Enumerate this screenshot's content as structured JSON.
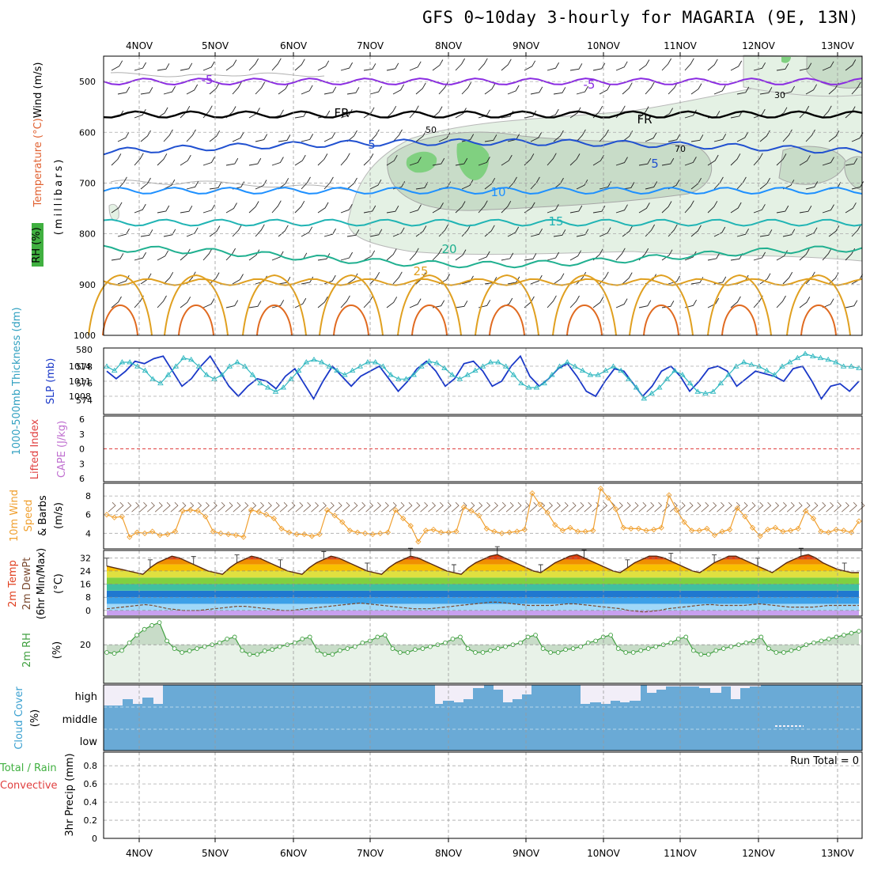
{
  "title": "GFS 0~10day 3-hourly for MAGARIA (9E, 13N)",
  "dates": [
    "4NOV",
    "5NOV",
    "6NOV",
    "7NOV",
    "8NOV",
    "9NOV",
    "10NOV",
    "11NOV",
    "12NOV",
    "13NOV"
  ],
  "chart_data": [
    {
      "type": "contour",
      "panel": "upper-air",
      "ylabel_parts": [
        "Wind (m/s)",
        "Temperature (°C)",
        "RH (%)",
        "(millibars)"
      ],
      "y_ticks": [
        500,
        600,
        700,
        800,
        900,
        1000
      ],
      "temperature_isotherms": [
        {
          "label": "-5",
          "pressure_mb": 500
        },
        {
          "label": "FR",
          "pressure_mb": 565
        },
        {
          "label": "5",
          "pressure_mb": 638
        },
        {
          "label": "10",
          "pressure_mb": 715
        },
        {
          "label": "15",
          "pressure_mb": 778
        },
        {
          "label": "20",
          "pressure_mb": 845
        },
        {
          "label": "25",
          "pressure_mb": 895
        }
      ],
      "rh_labels": [
        "30",
        "50",
        "70"
      ]
    },
    {
      "type": "line",
      "panel": "thickness-slp",
      "ylabel_left": "1000-500mb Thickness (dm)",
      "ylabel_right": "SLP (mb)",
      "y_ticks_left": [
        574,
        576,
        578,
        580
      ],
      "y_ticks_right": [
        1008,
        1011,
        1014
      ],
      "series": [
        {
          "name": "SLP (mb)",
          "values": [
            1013,
            1011.5,
            1013,
            1015,
            1014.5,
            1015.5,
            1016,
            1013,
            1010,
            1011.5,
            1014,
            1016,
            1013,
            1010,
            1008,
            1010,
            1011.5,
            1011,
            1009.5,
            1012,
            1013.5,
            1010.5,
            1007.5,
            1011,
            1014,
            1012,
            1010,
            1012,
            1013,
            1014,
            1011.5,
            1009,
            1011,
            1013.5,
            1015,
            1013,
            1010,
            1011.5,
            1014.5,
            1015,
            1013,
            1010,
            1011,
            1014,
            1016,
            1012,
            1010,
            1011.5,
            1013.5,
            1014.5,
            1012,
            1009,
            1008,
            1011,
            1013.5,
            1013,
            1010.5,
            1008,
            1010,
            1013,
            1014,
            1012,
            1009,
            1011,
            1013.5,
            1014,
            1013,
            1010,
            1011.5,
            1013,
            1012.5,
            1012,
            1011,
            1013.5,
            1014,
            1011,
            1007.5,
            1010,
            1010.5,
            1009,
            1011
          ]
        },
        {
          "name": "1000-500mb Thickness (dm)",
          "values": [
            578,
            577.5,
            578.5,
            578.5,
            578,
            577.5,
            576.5,
            576,
            577,
            578,
            579,
            578.8,
            578,
            577,
            576.5,
            577,
            578,
            578.5,
            578,
            577,
            576,
            575.5,
            575,
            575.5,
            576.5,
            577.5,
            578.5,
            578.8,
            578.5,
            578,
            577.5,
            577,
            577.5,
            578,
            578.5,
            578.5,
            578,
            577,
            576.5,
            576.5,
            577,
            578,
            578.6,
            578.4,
            577.8,
            577,
            576.5,
            577,
            577.5,
            578,
            578.5,
            578.5,
            578,
            577,
            576,
            575.5,
            575.5,
            576,
            577,
            578,
            578.5,
            578,
            577.5,
            577,
            577,
            577.5,
            578,
            577.5,
            576.5,
            575.5,
            574.2,
            574.8,
            575.5,
            576.5,
            577.5,
            577,
            576,
            575,
            574.8,
            575,
            576,
            577,
            578,
            578.5,
            578.2,
            578,
            577.5,
            577,
            578,
            578.5,
            579,
            579.5,
            579.2,
            579,
            578.8,
            578.5,
            578,
            578,
            577.8
          ]
        }
      ]
    },
    {
      "type": "line",
      "panel": "stability",
      "ylabel_parts": [
        "Lifted Index",
        "CAPE (J/kg)"
      ],
      "y_ticks": [
        "6",
        "3",
        "0",
        "3",
        "6"
      ],
      "series": [
        {
          "name": "Lifted Index",
          "values": [
            0
          ]
        }
      ]
    },
    {
      "type": "line",
      "panel": "10m-wind",
      "ylabel": "10m Wind Speed & Barbs",
      "yunit": "(m/s)",
      "y_ticks": [
        4,
        6,
        8
      ],
      "series": [
        {
          "name": "10m Wind Speed",
          "values": [
            6,
            5.7,
            5.8,
            3.6,
            4.1,
            4,
            4.2,
            3.8,
            3.9,
            4.2,
            6.4,
            6.5,
            6.4,
            5.8,
            4.2,
            4,
            3.9,
            3.8,
            3.6,
            6.5,
            6.3,
            6,
            5.6,
            4.5,
            4.1,
            3.9,
            3.9,
            3.7,
            3.9,
            6.5,
            5.9,
            5.2,
            4.3,
            4.1,
            4,
            3.9,
            4,
            4.1,
            6.5,
            5.6,
            4.8,
            3.1,
            4.3,
            4.4,
            4.1,
            4.1,
            4.2,
            6.8,
            6.4,
            5.9,
            4.5,
            4.2,
            4,
            4.1,
            4.2,
            4.4,
            8.3,
            7.1,
            6.2,
            4.9,
            4.3,
            4.6,
            4.2,
            4.2,
            4.3,
            8.8,
            7.8,
            6.6,
            4.6,
            4.5,
            4.5,
            4.3,
            4.4,
            4.6,
            8.1,
            6.5,
            5.2,
            4.3,
            4.3,
            4.5,
            3.8,
            4.2,
            4.4,
            6.7,
            5.8,
            4.6,
            3.7,
            4.4,
            4.6,
            4.2,
            4.3,
            4.5,
            6.4,
            5.6,
            4.2,
            4.1,
            4.4,
            4.3,
            4.1,
            5.3
          ]
        }
      ]
    },
    {
      "type": "area",
      "panel": "2m-temperature",
      "ylabel_parts": [
        "2m Temp",
        "2m DewPt",
        "(6hr Min/Max)"
      ],
      "yunit": "(°C)",
      "y_ticks": [
        0,
        8,
        16,
        24,
        32
      ],
      "series": [
        {
          "name": "2m Temp",
          "values": [
            27,
            26,
            25,
            24,
            23,
            22,
            26,
            29,
            31,
            33,
            32,
            30,
            28,
            26,
            24,
            23,
            22,
            26,
            29,
            31,
            33,
            32,
            30,
            28,
            26,
            24,
            23,
            22,
            26,
            29,
            31,
            33,
            32,
            30,
            28,
            26,
            24,
            23,
            22,
            26,
            29,
            31,
            33,
            32,
            30,
            28,
            26,
            24,
            23,
            22,
            26,
            29,
            31,
            33,
            34,
            32,
            30,
            28,
            26,
            24,
            23,
            26,
            29,
            31,
            33,
            34,
            32,
            30,
            28,
            26,
            24,
            23,
            26,
            29,
            31,
            33,
            33,
            32,
            30,
            28,
            26,
            24,
            23,
            26,
            29,
            31,
            33,
            33,
            31,
            29,
            27,
            25,
            23,
            26,
            29,
            31,
            33,
            34,
            32,
            29,
            27,
            25,
            24,
            23,
            23
          ]
        },
        {
          "name": "2m DewPt",
          "values": [
            1,
            1.5,
            2,
            2.5,
            3,
            3.5,
            3,
            2,
            1,
            0.5,
            0,
            0,
            0,
            0.5,
            1,
            1.5,
            2,
            2.5,
            2.5,
            2,
            1.5,
            1,
            0.5,
            0,
            0,
            0.5,
            1,
            1.5,
            2,
            2.5,
            3,
            3.5,
            4,
            4.5,
            4,
            3.5,
            3,
            2.5,
            2,
            1.5,
            1,
            1,
            1,
            1.5,
            2,
            2.5,
            3,
            3.5,
            4,
            4.5,
            5,
            5,
            4.5,
            4,
            3.5,
            3,
            3,
            3,
            3,
            3.5,
            4,
            4,
            3.5,
            3,
            2.5,
            2,
            1.5,
            1,
            0,
            -0.5,
            -1,
            -0.5,
            0,
            1,
            1.5,
            2,
            2.5,
            3,
            3.5,
            3.5,
            3,
            3,
            3,
            3,
            3.5,
            4,
            3.5,
            3,
            2.5,
            2,
            2,
            2,
            2,
            2.5,
            3,
            3,
            3,
            3,
            3
          ]
        }
      ]
    },
    {
      "type": "area",
      "panel": "2m-rh",
      "ylabel": "2m RH",
      "yunit": "(%)",
      "y_ticks": [
        20
      ],
      "series": [
        {
          "name": "2m RH",
          "values": [
            16,
            15.5,
            17,
            21,
            25,
            28,
            30,
            31.5,
            22,
            18,
            16,
            16.8,
            18,
            19,
            20,
            21,
            23,
            24,
            17,
            15,
            15,
            16.8,
            17.5,
            19,
            20,
            21,
            23,
            24,
            17,
            15,
            15,
            17,
            18,
            19,
            21,
            22,
            24,
            25,
            18,
            16,
            16,
            17.5,
            18,
            19,
            20,
            21,
            23,
            24,
            18,
            16,
            16,
            17,
            18,
            19,
            20,
            21,
            24,
            25,
            18,
            16,
            16,
            17.5,
            18,
            19,
            21,
            22,
            24,
            25,
            18,
            16,
            16,
            17,
            18,
            19,
            20,
            21,
            23,
            24,
            17,
            15,
            15,
            17,
            18,
            19,
            20,
            21,
            22,
            24,
            18,
            16,
            16,
            17,
            18,
            20,
            21,
            22,
            23,
            24,
            25,
            26,
            27
          ]
        }
      ]
    },
    {
      "type": "bar",
      "panel": "cloud-cover",
      "ylabel": "Cloud Cover",
      "yunit": "(%)",
      "levels": [
        "high",
        "middle",
        "low"
      ]
    },
    {
      "type": "bar",
      "panel": "precipitation",
      "ylabel_parts": [
        "Total / Rain",
        "Convective"
      ],
      "ylabel_axis": "3hr Precip (mm)",
      "y_ticks": [
        "0",
        "0.2",
        "0.4",
        "0.6",
        "0.8"
      ],
      "annotation": "Run Total = 0",
      "series": [
        {
          "name": "Total / Rain",
          "values": [
            0
          ]
        }
      ]
    }
  ]
}
